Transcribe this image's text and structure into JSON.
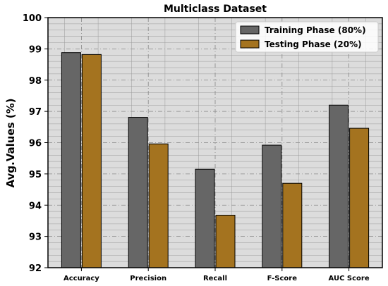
{
  "chart_data": {
    "type": "bar",
    "title": "Multiclass Dataset",
    "xlabel": "",
    "ylabel": "Avg.Values (%)",
    "ylim": [
      92,
      100
    ],
    "yticks": [
      92,
      93,
      94,
      95,
      96,
      97,
      98,
      99,
      100
    ],
    "categories": [
      "Accuracy",
      "Precision",
      "Recall",
      "F-Score",
      "AUC Score"
    ],
    "series": [
      {
        "name": "Training Phase (80%)",
        "color": "#666666",
        "values": [
          98.88,
          96.81,
          95.15,
          95.92,
          97.2
        ]
      },
      {
        "name": "Testing Phase (20%)",
        "color": "#a4731f",
        "values": [
          98.82,
          95.96,
          93.68,
          94.7,
          96.46
        ]
      }
    ],
    "grid": true,
    "legend_position": "top-right",
    "background_color": "#dcdcdc"
  }
}
